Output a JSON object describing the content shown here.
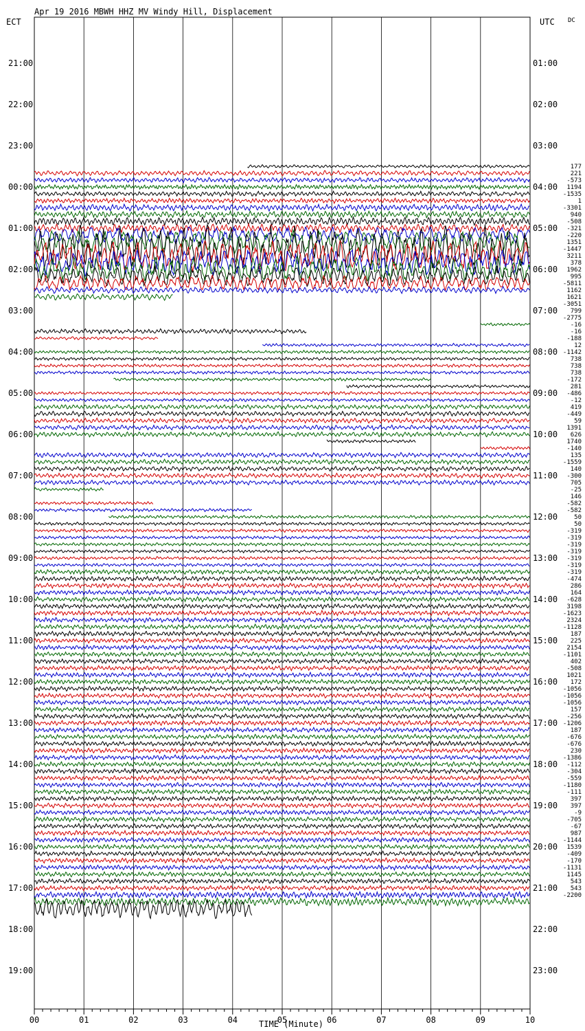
{
  "header": {
    "title": "Apr 19 2016 MBWH HHZ MV Windy Hill, Displacement",
    "left_axis_title": "ECT",
    "right_axis_title": "UTC",
    "dc_label": "DC"
  },
  "colors": {
    "background": "#ffffff",
    "grid": "#000000",
    "trace_cycle": [
      "#000000",
      "#d40000",
      "#0000cc",
      "#006600"
    ]
  },
  "chart_data": {
    "type": "line",
    "description_hidden": false,
    "xlabel": "TIME (Minute)",
    "xlim": [
      0,
      10
    ],
    "x_ticks": [
      "00",
      "01",
      "02",
      "03",
      "04",
      "05",
      "06",
      "07",
      "08",
      "09",
      "10"
    ],
    "left_time_labels": [
      "21:00",
      "22:00",
      "23:00",
      "00:00",
      "01:00",
      "02:00",
      "03:00",
      "04:00",
      "05:00",
      "06:00",
      "07:00",
      "08:00",
      "09:00",
      "10:00",
      "11:00",
      "12:00",
      "13:00",
      "14:00",
      "15:00",
      "16:00",
      "17:00",
      "18:00",
      "19:00"
    ],
    "right_time_labels": [
      "01:00",
      "02:00",
      "03:00",
      "04:00",
      "05:00",
      "06:00",
      "07:00",
      "08:00",
      "09:00",
      "10:00",
      "11:00",
      "12:00",
      "13:00",
      "14:00",
      "15:00",
      "16:00",
      "17:00",
      "18:00",
      "19:00",
      "20:00",
      "21:00",
      "22:00",
      "23:00"
    ],
    "dc_values": [
      "177",
      "221",
      "-573",
      "1194",
      "-1535",
      "1",
      "-3301",
      "940",
      "-508",
      "-321",
      "-220",
      "1351",
      "-1447",
      "3211",
      "378",
      "1962",
      "995",
      "-5811",
      "1162",
      "1621",
      "-3051",
      "799",
      "-2775",
      "-16",
      "-16",
      "-188",
      "12",
      "-1142",
      "738",
      "738",
      "738",
      "-172",
      "281",
      "-486",
      "-12",
      "419",
      "-449",
      "59",
      "1391",
      "626",
      "1740",
      "-140",
      "135",
      "-1559",
      "140",
      "-300",
      "705",
      "-25",
      "146",
      "-582",
      "-582",
      "50",
      "50",
      "-319",
      "-319",
      "-319",
      "-319",
      "-319",
      "-319",
      "-319",
      "-474",
      "286",
      "164",
      "-628",
      "3198",
      "-1623",
      "2324",
      "-1128",
      "187",
      "225",
      "2154",
      "-1101",
      "402",
      "-508",
      "1021",
      "172",
      "-1056",
      "-1056",
      "-1056",
      "157",
      "-256",
      "-1206",
      "187",
      "-676",
      "-676",
      "230",
      "-1386",
      "-112",
      "-304",
      "-559",
      "-1180",
      "-111",
      "397",
      "397",
      "-9",
      "-705",
      "-67",
      "987",
      "-1144",
      "1539",
      "-409",
      "-170",
      "-1131",
      "1145",
      "543",
      "543",
      "-2200"
    ],
    "series": [
      {
        "start_min": 4.3,
        "end_min": 10,
        "amp": 2,
        "period": 0.08
      },
      {
        "start_min": 0,
        "end_min": 10,
        "amp": 3,
        "period": 0.09
      },
      {
        "start_min": 0,
        "end_min": 10,
        "amp": 3,
        "period": 0.08
      },
      {
        "start_min": 0,
        "end_min": 10,
        "amp": 3,
        "period": 0.06
      },
      {
        "start_min": 0,
        "end_min": 10,
        "amp": 3,
        "period": 0.08
      },
      {
        "start_min": 0,
        "end_min": 10,
        "amp": 3,
        "period": 0.07
      },
      {
        "start_min": 0,
        "end_min": 10,
        "amp": 4,
        "period": 0.08
      },
      {
        "start_min": 0,
        "end_min": 10,
        "amp": 4,
        "period": 0.08
      },
      {
        "start_min": 0,
        "end_min": 10,
        "amp": 5,
        "period": 0.08
      },
      {
        "start_min": 0,
        "end_min": 10,
        "amp": 5,
        "period": 0.09
      },
      {
        "start_min": 0,
        "end_min": 10,
        "amp": 10,
        "period": 0.18
      },
      {
        "start_min": 0,
        "end_min": 10,
        "amp": 14,
        "period": 0.18
      },
      {
        "start_min": 0,
        "end_min": 10,
        "amp": 28,
        "period": 0.16
      },
      {
        "start_min": 0,
        "end_min": 10,
        "amp": 18,
        "period": 0.17
      },
      {
        "start_min": 0,
        "end_min": 10,
        "amp": 16,
        "period": 0.16
      },
      {
        "start_min": 0,
        "end_min": 10,
        "amp": 15,
        "period": 0.15
      },
      {
        "start_min": 0,
        "end_min": 10,
        "amp": 12,
        "period": 0.15
      },
      {
        "start_min": 0,
        "end_min": 10,
        "amp": 9,
        "period": 0.14
      },
      {
        "start_min": 0,
        "end_min": 10,
        "amp": 4,
        "period": 0.1
      },
      {
        "start_min": 0,
        "end_min": 2.8,
        "amp": 4,
        "period": 0.1
      },
      {
        "start_min": 0,
        "end_min": 0,
        "amp": 0,
        "period": 0.1
      },
      {
        "start_min": 0,
        "end_min": 0,
        "amp": 0,
        "period": 0.1
      },
      {
        "start_min": 0,
        "end_min": 0,
        "amp": 0,
        "period": 0.1
      },
      {
        "start_min": 9.0,
        "end_min": 10,
        "amp": 2,
        "period": 0.07
      },
      {
        "start_min": 0,
        "end_min": 5.5,
        "amp": 3,
        "period": 0.08
      },
      {
        "start_min": 0,
        "end_min": 2.5,
        "amp": 2,
        "period": 0.08
      },
      {
        "start_min": 4.6,
        "end_min": 10,
        "amp": 2,
        "period": 0.07
      },
      {
        "start_min": 0,
        "end_min": 10,
        "amp": 2,
        "period": 0.07
      },
      {
        "start_min": 0,
        "end_min": 10,
        "amp": 2,
        "period": 0.07
      },
      {
        "start_min": 0,
        "end_min": 10,
        "amp": 2,
        "period": 0.07
      },
      {
        "start_min": 0,
        "end_min": 10,
        "amp": 2,
        "period": 0.07
      },
      {
        "start_min": 1.6,
        "end_min": 8.0,
        "amp": 2,
        "period": 0.07
      },
      {
        "start_min": 6.3,
        "end_min": 10,
        "amp": 2,
        "period": 0.07
      },
      {
        "start_min": 0,
        "end_min": 10,
        "amp": 2,
        "period": 0.07
      },
      {
        "start_min": 0,
        "end_min": 10,
        "amp": 2,
        "period": 0.07
      },
      {
        "start_min": 0,
        "end_min": 10,
        "amp": 3,
        "period": 0.08
      },
      {
        "start_min": 0,
        "end_min": 10,
        "amp": 3,
        "period": 0.08
      },
      {
        "start_min": 0,
        "end_min": 10,
        "amp": 3,
        "period": 0.08
      },
      {
        "start_min": 0,
        "end_min": 10,
        "amp": 3,
        "period": 0.08
      },
      {
        "start_min": 0,
        "end_min": 10,
        "amp": 3,
        "period": 0.08
      },
      {
        "start_min": 5.9,
        "end_min": 7.7,
        "amp": 2,
        "period": 0.07
      },
      {
        "start_min": 9.0,
        "end_min": 10,
        "amp": 2,
        "period": 0.07
      },
      {
        "start_min": 0,
        "end_min": 10,
        "amp": 3,
        "period": 0.08
      },
      {
        "start_min": 0,
        "end_min": 10,
        "amp": 3,
        "period": 0.08
      },
      {
        "start_min": 0,
        "end_min": 10,
        "amp": 3,
        "period": 0.08
      },
      {
        "start_min": 0,
        "end_min": 10,
        "amp": 3,
        "period": 0.08
      },
      {
        "start_min": 0,
        "end_min": 10,
        "amp": 3,
        "period": 0.08
      },
      {
        "start_min": 0,
        "end_min": 1.4,
        "amp": 2,
        "period": 0.07
      },
      {
        "start_min": 0,
        "end_min": 0,
        "amp": 0,
        "period": 0.1
      },
      {
        "start_min": 0,
        "end_min": 2.4,
        "amp": 2,
        "period": 0.07
      },
      {
        "start_min": 0,
        "end_min": 4.4,
        "amp": 2,
        "period": 0.07
      },
      {
        "start_min": 1.5,
        "end_min": 10,
        "amp": 2,
        "period": 0.07
      },
      {
        "start_min": 0,
        "end_min": 10,
        "amp": 2,
        "period": 0.07
      },
      {
        "start_min": 0,
        "end_min": 10,
        "amp": 2,
        "period": 0.07
      },
      {
        "start_min": 0,
        "end_min": 10,
        "amp": 2,
        "period": 0.07
      },
      {
        "start_min": 0,
        "end_min": 10,
        "amp": 2,
        "period": 0.07
      },
      {
        "start_min": 0,
        "end_min": 10,
        "amp": 2,
        "period": 0.07
      },
      {
        "start_min": 0,
        "end_min": 10,
        "amp": 2,
        "period": 0.07
      },
      {
        "start_min": 0,
        "end_min": 10,
        "amp": 2,
        "period": 0.07
      },
      {
        "start_min": 0,
        "end_min": 10,
        "amp": 3,
        "period": 0.07
      },
      {
        "start_min": 0,
        "end_min": 10,
        "amp": 3,
        "period": 0.07
      },
      {
        "start_min": 0,
        "end_min": 10,
        "amp": 3,
        "period": 0.07
      },
      {
        "start_min": 0,
        "end_min": 10,
        "amp": 3,
        "period": 0.07
      },
      {
        "start_min": 0,
        "end_min": 10,
        "amp": 3,
        "period": 0.07
      },
      {
        "start_min": 0,
        "end_min": 10,
        "amp": 3,
        "period": 0.07
      },
      {
        "start_min": 0,
        "end_min": 10,
        "amp": 3,
        "period": 0.07
      },
      {
        "start_min": 0,
        "end_min": 10,
        "amp": 3,
        "period": 0.07
      },
      {
        "start_min": 0,
        "end_min": 10,
        "amp": 3,
        "period": 0.07
      },
      {
        "start_min": 0,
        "end_min": 10,
        "amp": 3,
        "period": 0.07
      },
      {
        "start_min": 0,
        "end_min": 10,
        "amp": 3,
        "period": 0.07
      },
      {
        "start_min": 0,
        "end_min": 10,
        "amp": 3,
        "period": 0.07
      },
      {
        "start_min": 0,
        "end_min": 10,
        "amp": 3,
        "period": 0.07
      },
      {
        "start_min": 0,
        "end_min": 10,
        "amp": 3,
        "period": 0.07
      },
      {
        "start_min": 0,
        "end_min": 10,
        "amp": 3,
        "period": 0.07
      },
      {
        "start_min": 0,
        "end_min": 10,
        "amp": 3,
        "period": 0.07
      },
      {
        "start_min": 0,
        "end_min": 10,
        "amp": 3,
        "period": 0.07
      },
      {
        "start_min": 0,
        "end_min": 10,
        "amp": 3,
        "period": 0.07
      },
      {
        "start_min": 0,
        "end_min": 10,
        "amp": 3,
        "period": 0.07
      },
      {
        "start_min": 0,
        "end_min": 10,
        "amp": 3,
        "period": 0.07
      },
      {
        "start_min": 0,
        "end_min": 10,
        "amp": 3,
        "period": 0.07
      },
      {
        "start_min": 0,
        "end_min": 10,
        "amp": 3,
        "period": 0.07
      },
      {
        "start_min": 0,
        "end_min": 10,
        "amp": 3,
        "period": 0.07
      },
      {
        "start_min": 0,
        "end_min": 10,
        "amp": 3,
        "period": 0.07
      },
      {
        "start_min": 0,
        "end_min": 10,
        "amp": 3,
        "period": 0.07
      },
      {
        "start_min": 0,
        "end_min": 10,
        "amp": 3,
        "period": 0.07
      },
      {
        "start_min": 0,
        "end_min": 10,
        "amp": 3,
        "period": 0.07
      },
      {
        "start_min": 0,
        "end_min": 10,
        "amp": 3,
        "period": 0.07
      },
      {
        "start_min": 0,
        "end_min": 10,
        "amp": 3,
        "period": 0.07
      },
      {
        "start_min": 0,
        "end_min": 10,
        "amp": 3,
        "period": 0.07
      },
      {
        "start_min": 0,
        "end_min": 10,
        "amp": 3,
        "period": 0.07
      },
      {
        "start_min": 0,
        "end_min": 10,
        "amp": 3,
        "period": 0.07
      },
      {
        "start_min": 0,
        "end_min": 10,
        "amp": 3,
        "period": 0.07
      },
      {
        "start_min": 0,
        "end_min": 10,
        "amp": 3,
        "period": 0.07
      },
      {
        "start_min": 0,
        "end_min": 10,
        "amp": 3,
        "period": 0.07
      },
      {
        "start_min": 0,
        "end_min": 10,
        "amp": 3,
        "period": 0.07
      },
      {
        "start_min": 0,
        "end_min": 10,
        "amp": 3,
        "period": 0.07
      },
      {
        "start_min": 0,
        "end_min": 10,
        "amp": 3,
        "period": 0.07
      },
      {
        "start_min": 0,
        "end_min": 10,
        "amp": 3,
        "period": 0.07
      },
      {
        "start_min": 0,
        "end_min": 10,
        "amp": 3,
        "period": 0.07
      },
      {
        "start_min": 0,
        "end_min": 10,
        "amp": 3,
        "period": 0.07
      },
      {
        "start_min": 0,
        "end_min": 10,
        "amp": 3,
        "period": 0.07
      },
      {
        "start_min": 0,
        "end_min": 10,
        "amp": 3,
        "period": 0.07
      },
      {
        "start_min": 0,
        "end_min": 10,
        "amp": 3,
        "period": 0.07
      },
      {
        "start_min": 0,
        "end_min": 10,
        "amp": 3,
        "period": 0.07
      },
      {
        "start_min": 0,
        "end_min": 10,
        "amp": 3,
        "period": 0.07
      },
      {
        "start_min": 0,
        "end_min": 10,
        "amp": 3,
        "period": 0.07
      },
      {
        "start_min": 0,
        "end_min": 10,
        "amp": 4,
        "period": 0.07
      },
      {
        "start_min": 0,
        "end_min": 10,
        "amp": 5,
        "period": 0.08
      },
      {
        "start_min": 0,
        "end_min": 4.4,
        "amp": 12,
        "period": 0.12
      }
    ]
  }
}
